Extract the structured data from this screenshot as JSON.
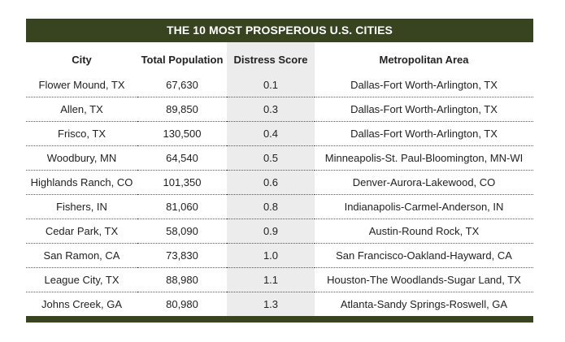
{
  "title": "THE 10 MOST PROSPEROUS U.S. CITIES",
  "colors": {
    "bar": "#37441f",
    "score_column_bg": "#ececec"
  },
  "chart_data": {
    "type": "table",
    "title": "THE 10 MOST PROSPEROUS U.S. CITIES",
    "columns": [
      "City",
      "Total Population",
      "Distress Score",
      "Metropolitan Area"
    ],
    "rows": [
      [
        "Flower Mound, TX",
        "67,630",
        "0.1",
        "Dallas-Fort Worth-Arlington, TX"
      ],
      [
        "Allen, TX",
        "89,850",
        "0.3",
        "Dallas-Fort Worth-Arlington, TX"
      ],
      [
        "Frisco, TX",
        "130,500",
        "0.4",
        "Dallas-Fort Worth-Arlington, TX"
      ],
      [
        "Woodbury, MN",
        "64,540",
        "0.5",
        "Minneapolis-St. Paul-Bloomington, MN-WI"
      ],
      [
        "Highlands Ranch, CO",
        "101,350",
        "0.6",
        "Denver-Aurora-Lakewood, CO"
      ],
      [
        "Fishers, IN",
        "81,060",
        "0.8",
        "Indianapolis-Carmel-Anderson, IN"
      ],
      [
        "Cedar Park, TX",
        "58,090",
        "0.9",
        "Austin-Round Rock, TX"
      ],
      [
        "San Ramon, CA",
        "73,830",
        "1.0",
        "San Francisco-Oakland-Hayward, CA"
      ],
      [
        "League City, TX",
        "88,980",
        "1.1",
        "Houston-The Woodlands-Sugar Land, TX"
      ],
      [
        "Johns Creek, GA",
        "80,980",
        "1.3",
        "Atlanta-Sandy Springs-Roswell, GA"
      ]
    ]
  }
}
